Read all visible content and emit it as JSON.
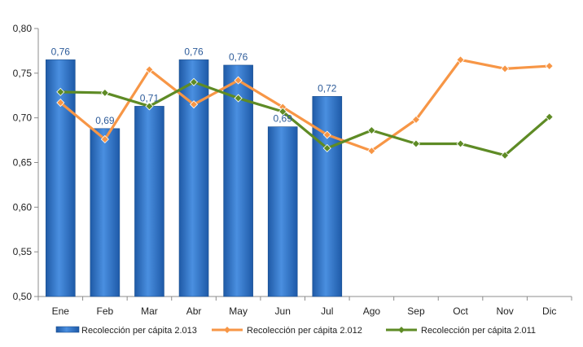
{
  "chart_data": {
    "type": "bar",
    "categories": [
      "Ene",
      "Feb",
      "Mar",
      "Abr",
      "May",
      "Jun",
      "Jul",
      "Ago",
      "Sep",
      "Oct",
      "Nov",
      "Dic"
    ],
    "ylim": [
      0.5,
      0.8
    ],
    "yticks": [
      0.5,
      0.55,
      0.6,
      0.65,
      0.7,
      0.75,
      0.8
    ],
    "ytick_labels": [
      "0,50",
      "0,55",
      "0,60",
      "0,65",
      "0,70",
      "0,75",
      "0,80"
    ],
    "grid": false,
    "legend_position": "bottom",
    "series": [
      {
        "name": "Recolección per cápita 2.013",
        "type": "bar",
        "color": "#2E6FC0",
        "values": [
          0.765,
          0.688,
          0.713,
          0.765,
          0.759,
          0.69,
          0.724,
          null,
          null,
          null,
          null,
          null
        ],
        "labels": [
          "0,76",
          "0,69",
          "0,71",
          "0,76",
          "0,76",
          "0,69",
          "0,72",
          null,
          null,
          null,
          null,
          null
        ]
      },
      {
        "name": "Recolección per cápita 2.012",
        "type": "line",
        "color": "#F79646",
        "values": [
          0.717,
          0.676,
          0.754,
          0.715,
          0.742,
          0.712,
          0.681,
          0.663,
          0.698,
          0.765,
          0.755,
          0.758
        ]
      },
      {
        "name": "Recolección per cápita 2.011",
        "type": "line",
        "color": "#5E8B25",
        "values": [
          0.729,
          0.728,
          0.713,
          0.74,
          0.722,
          0.707,
          0.666,
          0.686,
          0.671,
          0.671,
          0.658,
          0.701
        ]
      }
    ]
  }
}
